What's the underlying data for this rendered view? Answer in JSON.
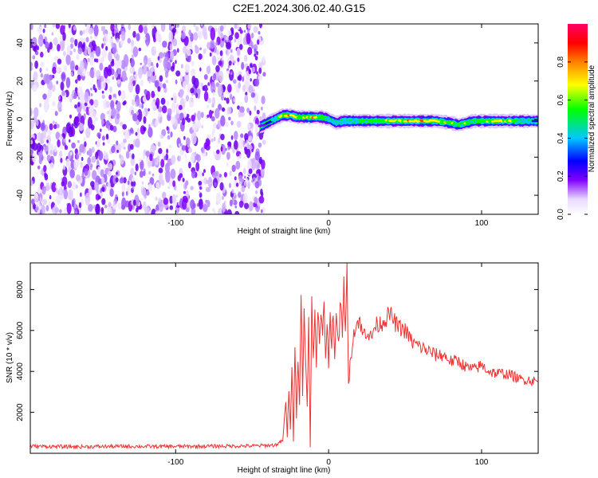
{
  "title": "C2E1.2024.306.02.40.G15",
  "chart_data": [
    {
      "type": "heatmap",
      "xlabel": "Height of straight line (km)",
      "ylabel": "Frequency (Hz)",
      "xlim": [
        -195,
        137
      ],
      "ylim": [
        -50,
        50
      ],
      "xticks": [
        -100,
        0,
        100
      ],
      "xtick_labels": [
        "-100",
        "0",
        "100"
      ],
      "yticks": [
        -40,
        -20,
        0,
        20,
        40
      ],
      "ytick_labels": [
        "-40",
        "-20",
        "0",
        "20",
        "40"
      ],
      "grid": false,
      "noise_region_x": [
        -195,
        -42
      ],
      "signal_track": {
        "x": [
          -45,
          -40,
          -35,
          -30,
          -25,
          -20,
          -15,
          -10,
          -5,
          0,
          5,
          10,
          20,
          30,
          40,
          50,
          60,
          70,
          80,
          85,
          90,
          95,
          100,
          110,
          120,
          130,
          137
        ],
        "freq": [
          -4,
          -2,
          0,
          2,
          2,
          1,
          1,
          1,
          1,
          0,
          -2,
          -1,
          -1,
          -1,
          -1,
          -1,
          -1,
          -1,
          -2,
          -3,
          -2,
          -1,
          -1,
          -1,
          -1,
          -1,
          -1
        ],
        "amplitude": [
          0.2,
          0.4,
          0.6,
          0.8,
          0.9,
          0.7,
          0.8,
          0.95,
          0.7,
          0.5,
          0.6,
          0.5,
          0.6,
          0.7,
          0.8,
          0.85,
          0.9,
          0.85,
          0.8,
          0.6,
          0.75,
          0.6,
          0.7,
          0.85,
          0.75,
          0.5,
          0.4
        ]
      },
      "colorbar": {
        "label": "Normalized spectral amplitude",
        "range": [
          0,
          1
        ],
        "ticks": [
          0,
          0.2,
          0.4,
          0.6,
          0.8
        ],
        "tick_labels": [
          "0.0",
          "0.2",
          "0.4",
          "0.6",
          "0.8"
        ],
        "colors": [
          "#ffffff",
          "#e8d8ff",
          "#8000ff",
          "#0000ff",
          "#00c8ff",
          "#00ff00",
          "#ffff00",
          "#ff8000",
          "#ff0000",
          "#ff0066"
        ]
      }
    },
    {
      "type": "line",
      "xlabel": "Height of straight line (km)",
      "ylabel": "SNR (10 * v/v)",
      "xlim": [
        -195,
        137
      ],
      "ylim": [
        0,
        9300
      ],
      "xticks": [
        -100,
        0,
        100
      ],
      "xtick_labels": [
        "-100",
        "0",
        "100"
      ],
      "yticks": [
        2000,
        4000,
        6000,
        8000
      ],
      "ytick_labels": [
        "2000",
        "4000",
        "6000",
        "8000"
      ],
      "grid": false,
      "series": [
        {
          "color": "#ee3333",
          "x": [
            -195,
            -170,
            -150,
            -130,
            -110,
            -90,
            -70,
            -50,
            -35,
            -30,
            -28,
            -27,
            -26,
            -25,
            -24,
            -23,
            -22,
            -21,
            -20,
            -19,
            -18,
            -17,
            -16,
            -15,
            -14,
            -13,
            -12,
            -11,
            -10,
            -9,
            -8,
            -7,
            -6,
            -5,
            -4,
            -3,
            -2,
            -1,
            0,
            1,
            2,
            3,
            4,
            5,
            6,
            7,
            8,
            9,
            10,
            11,
            12,
            13,
            14,
            15,
            16,
            18,
            20,
            22,
            25,
            28,
            30,
            35,
            40,
            45,
            50,
            55,
            60,
            65,
            70,
            75,
            80,
            85,
            90,
            95,
            100,
            105,
            110,
            115,
            120,
            125,
            130,
            137
          ],
          "values": [
            350,
            320,
            330,
            340,
            330,
            340,
            350,
            360,
            400,
            600,
            2500,
            800,
            3200,
            1200,
            4000,
            600,
            5500,
            1800,
            4800,
            2500,
            7800,
            3000,
            7200,
            4500,
            2200,
            6500,
            300,
            7500,
            5000,
            6800,
            4000,
            7400,
            5200,
            6600,
            5800,
            7600,
            4800,
            6200,
            4400,
            6800,
            5400,
            7200,
            4600,
            6400,
            5600,
            6000,
            7800,
            5400,
            8200,
            6200,
            9300,
            3200,
            4400,
            5000,
            5800,
            6200,
            6600,
            5800,
            6000,
            5600,
            6200,
            6400,
            6800,
            6200,
            6000,
            5400,
            5200,
            5000,
            4800,
            4800,
            4500,
            4500,
            4200,
            4100,
            4300,
            4000,
            3900,
            3900,
            3800,
            3600,
            3600,
            3500
          ]
        }
      ]
    }
  ]
}
